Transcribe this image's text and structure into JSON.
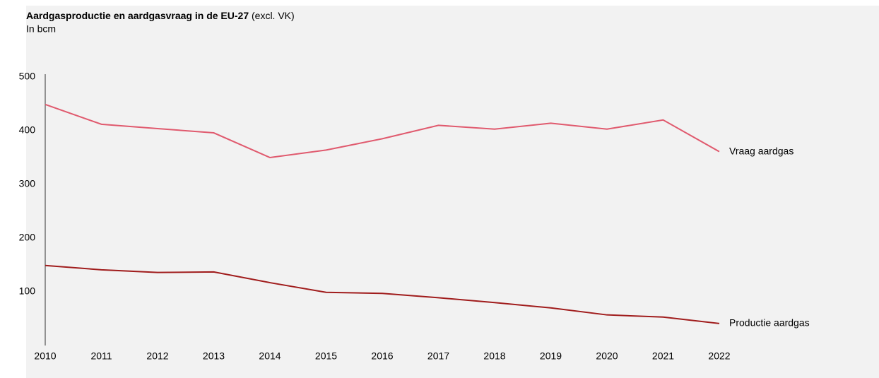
{
  "chart_data": {
    "type": "line",
    "title": "Aardgasproductie en aardgasvraag in de EU-27",
    "title_note": "(excl. VK)",
    "subtitle": "In bcm",
    "categories": [
      "2010",
      "2011",
      "2012",
      "2013",
      "2014",
      "2015",
      "2016",
      "2017",
      "2018",
      "2019",
      "2020",
      "2021",
      "2022"
    ],
    "series": [
      {
        "name": "Vraag aardgas",
        "color": "#e05a6e",
        "values": [
          449,
          412,
          404,
          396,
          350,
          364,
          385,
          410,
          403,
          414,
          403,
          420,
          361
        ]
      },
      {
        "name": "Productie aardgas",
        "color": "#a01c1c",
        "values": [
          149,
          141,
          136,
          137,
          117,
          99,
          97,
          89,
          80,
          70,
          57,
          53,
          41
        ]
      }
    ],
    "ylim": [
      0,
      500
    ],
    "yticks": [
      100,
      200,
      300,
      400,
      500
    ],
    "grid": false
  }
}
